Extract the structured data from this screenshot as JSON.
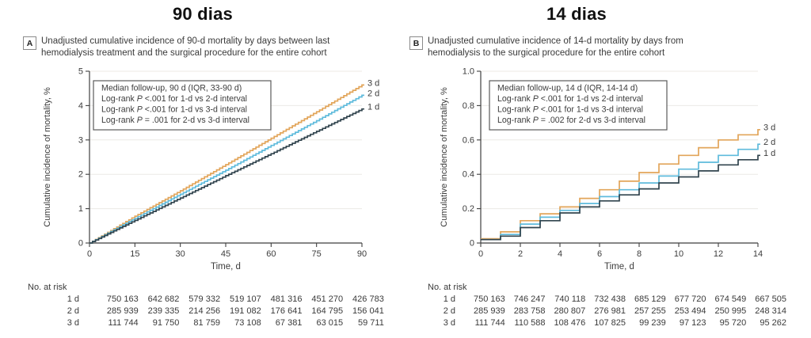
{
  "panels": [
    {
      "title": "90 dias",
      "panel_letter": "A",
      "caption_lines": [
        "Unadjusted cumulative incidence of 90-d mortality by days between last",
        "hemodialysis treatment and the surgical procedure for the entire cohort"
      ],
      "at_risk": {
        "header": "No. at risk",
        "rows": [
          {
            "label": "1 d",
            "values": [
              "750 163",
              "642 682",
              "579 332",
              "519 107",
              "481 316",
              "451 270",
              "426 783"
            ]
          },
          {
            "label": "2 d",
            "values": [
              "285 939",
              "239 335",
              "214 256",
              "191 082",
              "176 641",
              "164 795",
              "156 041"
            ]
          },
          {
            "label": "3 d",
            "values": [
              "111 744",
              "91 750",
              "81 759",
              "73 108",
              "67 381",
              "63 015",
              "59 711"
            ]
          }
        ]
      }
    },
    {
      "title": "14 dias",
      "panel_letter": "B",
      "caption_lines": [
        "Unadjusted cumulative incidence of 14-d mortality by days from",
        "hemodialysis to the surgical procedure for the entire cohort"
      ],
      "at_risk": {
        "header": "No. at risk",
        "rows": [
          {
            "label": "1 d",
            "values": [
              "750 163",
              "746 247",
              "740 118",
              "732 438",
              "685 129",
              "677 720",
              "674 549",
              "667 505"
            ]
          },
          {
            "label": "2 d",
            "values": [
              "285 939",
              "283 758",
              "280 807",
              "276 981",
              "257 255",
              "253 494",
              "250 995",
              "248 314"
            ]
          },
          {
            "label": "3 d",
            "values": [
              "111 744",
              "110 588",
              "108 476",
              "107 825",
              "99 239",
              "97 123",
              "95 720",
              "95 262"
            ]
          }
        ]
      }
    }
  ],
  "chart_data": [
    {
      "type": "line",
      "subtype": "step-cumulative-incidence",
      "panel": "A",
      "title": "90 dias",
      "xlabel": "Time, d",
      "ylabel": "Cumulative incidence of mortality, %",
      "xlim": [
        0,
        90
      ],
      "ylim": [
        0,
        5
      ],
      "xticks": [
        0,
        15,
        30,
        45,
        60,
        75,
        90
      ],
      "xtick_labels": [
        "0",
        "15",
        "30",
        "45",
        "60",
        "75",
        "90"
      ],
      "yticks": [
        0,
        1,
        2,
        3,
        4,
        5
      ],
      "ytick_labels": [
        "0",
        "1",
        "2",
        "3",
        "4",
        "5"
      ],
      "grid": "horizontal",
      "legend_box_lines": [
        "Median follow-up, 90 d (IQR, 33-90 d)",
        "Log-rank P <.001 for 1-d vs 2-d interval",
        "Log-rank P <.001 for 1-d vs 3-d interval",
        "Log-rank P = .001 for 2-d vs 3-d interval"
      ],
      "series": [
        {
          "name": "3 d",
          "color": "#E2A55A",
          "x": [
            0,
            15,
            30,
            45,
            60,
            75,
            90
          ],
          "y": [
            0,
            0.78,
            1.52,
            2.28,
            3.05,
            3.82,
            4.6
          ]
        },
        {
          "name": "2 d",
          "color": "#5FBBDC",
          "x": [
            0,
            15,
            30,
            45,
            60,
            75,
            90
          ],
          "y": [
            0,
            0.72,
            1.42,
            2.12,
            2.84,
            3.56,
            4.3
          ]
        },
        {
          "name": "1 d",
          "color": "#31444E",
          "x": [
            0,
            15,
            30,
            45,
            60,
            75,
            90
          ],
          "y": [
            0,
            0.66,
            1.31,
            1.96,
            2.6,
            3.25,
            3.9
          ]
        }
      ]
    },
    {
      "type": "line",
      "subtype": "step-cumulative-incidence",
      "panel": "B",
      "title": "14 dias",
      "xlabel": "Time, d",
      "ylabel": "Cumulative incidence of mortality, %",
      "xlim": [
        0,
        14
      ],
      "ylim": [
        0,
        1.0
      ],
      "xticks": [
        0,
        2,
        4,
        6,
        8,
        10,
        12,
        14
      ],
      "xtick_labels": [
        "0",
        "2",
        "4",
        "6",
        "8",
        "10",
        "12",
        "14"
      ],
      "yticks": [
        0,
        0.2,
        0.4,
        0.6,
        0.8,
        1.0
      ],
      "ytick_labels": [
        "0",
        "0.2",
        "0.4",
        "0.6",
        "0.8",
        "1.0"
      ],
      "grid": "horizontal",
      "legend_box_lines": [
        "Median follow-up, 14 d (IQR, 14-14 d)",
        "Log-rank P <.001 for 1-d vs 2-d interval",
        "Log-rank P <.001 for 1-d vs 3-d interval",
        "Log-rank P = .002 for 2-d vs 3-d interval"
      ],
      "series": [
        {
          "name": "3 d",
          "color": "#E2A55A",
          "x": [
            0,
            1,
            2,
            3,
            4,
            5,
            6,
            7,
            8,
            9,
            10,
            11,
            12,
            13,
            14
          ],
          "y": [
            0.025,
            0.065,
            0.13,
            0.17,
            0.21,
            0.26,
            0.31,
            0.36,
            0.41,
            0.46,
            0.51,
            0.555,
            0.6,
            0.63,
            0.66
          ]
        },
        {
          "name": "2 d",
          "color": "#5FBBDC",
          "x": [
            0,
            1,
            2,
            3,
            4,
            5,
            6,
            7,
            8,
            9,
            10,
            11,
            12,
            13,
            14
          ],
          "y": [
            0.02,
            0.05,
            0.11,
            0.15,
            0.19,
            0.23,
            0.27,
            0.31,
            0.35,
            0.39,
            0.43,
            0.47,
            0.51,
            0.545,
            0.575
          ]
        },
        {
          "name": "1 d",
          "color": "#31444E",
          "x": [
            0,
            1,
            2,
            3,
            4,
            5,
            6,
            7,
            8,
            9,
            10,
            11,
            12,
            13,
            14
          ],
          "y": [
            0.02,
            0.04,
            0.09,
            0.13,
            0.175,
            0.21,
            0.245,
            0.28,
            0.315,
            0.35,
            0.385,
            0.42,
            0.455,
            0.485,
            0.51
          ]
        }
      ]
    }
  ],
  "colors": {
    "series_3d": "#E2A55A",
    "series_2d": "#5FBBDC",
    "series_1d": "#31444E",
    "grid_line": "#ECE9E6",
    "axis": "#3F3F3F",
    "text": "#3C3C3C",
    "legend_border": "#5a5a5a"
  }
}
